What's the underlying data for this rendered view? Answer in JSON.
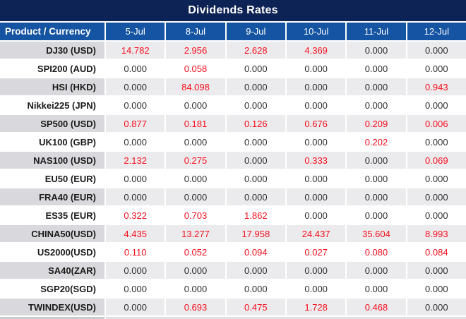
{
  "chart_data": {
    "type": "table",
    "title": "Dividends Rates",
    "product_header": "Product / Currency",
    "date_headers": [
      "5-Jul",
      "8-Jul",
      "9-Jul",
      "10-Jul",
      "11-Jul",
      "12-Jul"
    ],
    "rows": [
      {
        "product": "DJ30 (USD)",
        "values": [
          "14.782",
          "2.956",
          "2.628",
          "4.369",
          "0.000",
          "0.000"
        ]
      },
      {
        "product": "SPI200 (AUD)",
        "values": [
          "0.000",
          "0.058",
          "0.000",
          "0.000",
          "0.000",
          "0.000"
        ]
      },
      {
        "product": "HSI (HKD)",
        "values": [
          "0.000",
          "84.098",
          "0.000",
          "0.000",
          "0.000",
          "0.943"
        ]
      },
      {
        "product": "Nikkei225 (JPN)",
        "values": [
          "0.000",
          "0.000",
          "0.000",
          "0.000",
          "0.000",
          "0.000"
        ]
      },
      {
        "product": "SP500 (USD)",
        "values": [
          "0.877",
          "0.181",
          "0.126",
          "0.676",
          "0.209",
          "0.006"
        ]
      },
      {
        "product": "UK100 (GBP)",
        "values": [
          "0.000",
          "0.000",
          "0.000",
          "0.000",
          "0.202",
          "0.000"
        ]
      },
      {
        "product": "NAS100 (USD)",
        "values": [
          "2.132",
          "0.275",
          "0.000",
          "0.333",
          "0.000",
          "0.069"
        ]
      },
      {
        "product": "EU50 (EUR)",
        "values": [
          "0.000",
          "0.000",
          "0.000",
          "0.000",
          "0.000",
          "0.000"
        ]
      },
      {
        "product": "FRA40 (EUR)",
        "values": [
          "0.000",
          "0.000",
          "0.000",
          "0.000",
          "0.000",
          "0.000"
        ]
      },
      {
        "product": "ES35 (EUR)",
        "values": [
          "0.322",
          "0.703",
          "1.862",
          "0.000",
          "0.000",
          "0.000"
        ]
      },
      {
        "product": "CHINA50(USD)",
        "values": [
          "4.435",
          "13.277",
          "17.958",
          "24.437",
          "35.604",
          "8.993"
        ]
      },
      {
        "product": "US2000(USD)",
        "values": [
          "0.110",
          "0.052",
          "0.094",
          "0.027",
          "0.080",
          "0.084"
        ]
      },
      {
        "product": "SA40(ZAR)",
        "values": [
          "0.000",
          "0.000",
          "0.000",
          "0.000",
          "0.000",
          "0.000"
        ]
      },
      {
        "product": "SGP20(SGD)",
        "values": [
          "0.000",
          "0.000",
          "0.000",
          "0.000",
          "0.000",
          "0.000"
        ]
      },
      {
        "product": "TWINDEX(USD)",
        "values": [
          "0.000",
          "0.693",
          "0.475",
          "1.728",
          "0.468",
          "0.000"
        ]
      }
    ]
  },
  "colors": {
    "title_bar_navy": "#0e2355",
    "header_blue": "#1553a3",
    "value_red": "#f80e1d",
    "value_zero_text": "#2e2e2e",
    "shaded_row_product_bg": "#d9d9dd",
    "shaded_row_value_bg": "#ebebed",
    "bottom_strip_left": "#c8cbd2",
    "bottom_strip_right": "#dfe0e2"
  }
}
